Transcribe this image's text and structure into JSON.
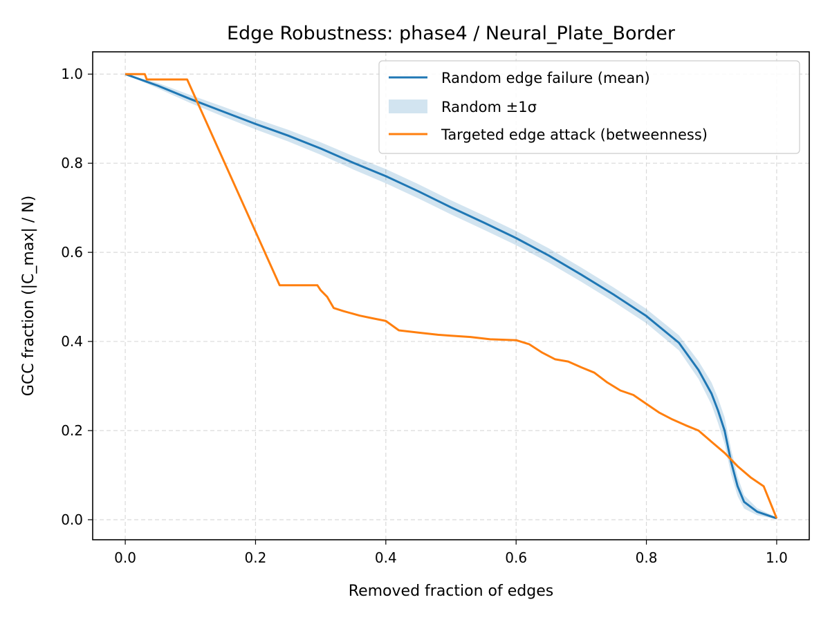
{
  "chart_data": {
    "type": "line",
    "title": "Edge Robustness: phase4 / Neural_Plate_Border",
    "xlabel": "Removed fraction of edges",
    "ylabel": "GCC fraction (|C_max| / N)",
    "xlim": [
      -0.05,
      1.05
    ],
    "ylim": [
      -0.045,
      1.05
    ],
    "xticks": [
      "0.0",
      "0.2",
      "0.4",
      "0.6",
      "0.8",
      "1.0"
    ],
    "yticks": [
      "0.0",
      "0.2",
      "0.4",
      "0.6",
      "0.8",
      "1.0"
    ],
    "grid": true,
    "legend_position": "top-right",
    "series": [
      {
        "name": "Random edge failure (mean)",
        "color": "#1f77b4",
        "x": [
          0.0,
          0.05,
          0.1,
          0.15,
          0.2,
          0.25,
          0.3,
          0.35,
          0.4,
          0.45,
          0.5,
          0.55,
          0.6,
          0.65,
          0.7,
          0.75,
          0.8,
          0.85,
          0.88,
          0.9,
          0.91,
          0.92,
          0.93,
          0.94,
          0.95,
          0.97,
          1.0
        ],
        "values": [
          1.0,
          0.974,
          0.944,
          0.916,
          0.888,
          0.862,
          0.833,
          0.801,
          0.771,
          0.737,
          0.701,
          0.667,
          0.632,
          0.593,
          0.55,
          0.505,
          0.457,
          0.397,
          0.336,
          0.283,
          0.245,
          0.2,
          0.13,
          0.075,
          0.04,
          0.018,
          0.003
        ]
      },
      {
        "name": "Random ±1σ",
        "color": "#1f77b4",
        "band_width": [
          0.0,
          0.006,
          0.009,
          0.011,
          0.012,
          0.013,
          0.014,
          0.015,
          0.016,
          0.016,
          0.016,
          0.016,
          0.016,
          0.016,
          0.016,
          0.016,
          0.016,
          0.017,
          0.02,
          0.025,
          0.028,
          0.03,
          0.028,
          0.022,
          0.015,
          0.008,
          0.002
        ]
      },
      {
        "name": "Targeted edge attack (betweenness)",
        "color": "#ff7f0e",
        "x": [
          0.0,
          0.03,
          0.033,
          0.095,
          0.237,
          0.295,
          0.3,
          0.31,
          0.32,
          0.335,
          0.36,
          0.38,
          0.4,
          0.42,
          0.45,
          0.48,
          0.5,
          0.53,
          0.56,
          0.6,
          0.62,
          0.64,
          0.66,
          0.68,
          0.7,
          0.72,
          0.74,
          0.76,
          0.78,
          0.8,
          0.82,
          0.84,
          0.86,
          0.88,
          0.9,
          0.92,
          0.94,
          0.96,
          0.98,
          1.0
        ],
        "values": [
          1.0,
          1.0,
          0.988,
          0.988,
          0.526,
          0.526,
          0.515,
          0.5,
          0.475,
          0.468,
          0.458,
          0.452,
          0.446,
          0.425,
          0.42,
          0.415,
          0.413,
          0.41,
          0.405,
          0.403,
          0.394,
          0.375,
          0.36,
          0.355,
          0.342,
          0.33,
          0.308,
          0.29,
          0.28,
          0.26,
          0.24,
          0.225,
          0.212,
          0.2,
          0.175,
          0.15,
          0.12,
          0.095,
          0.075,
          0.003
        ]
      }
    ]
  }
}
